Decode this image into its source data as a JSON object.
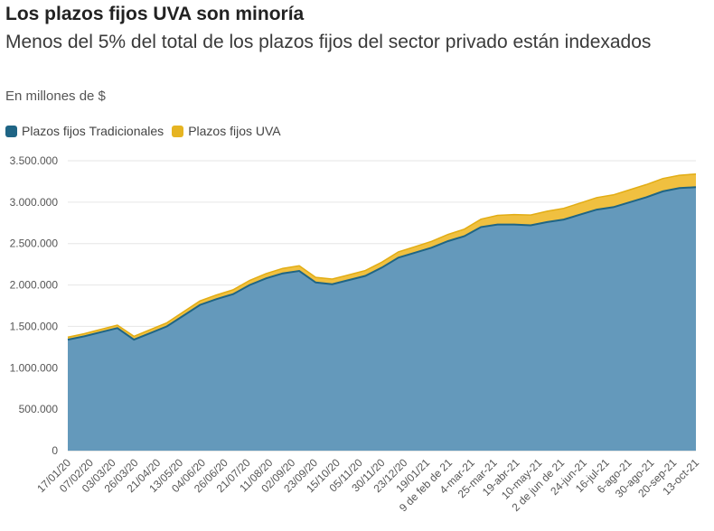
{
  "title": "Los plazos fijos UVA son minoría",
  "subtitle": "Menos del 5% del total de los plazos fijos del sector privado están indexados",
  "units": "En millones de $",
  "legend": [
    {
      "label": "Plazos fijos Tradicionales",
      "color": "#1f6585"
    },
    {
      "label": "Plazos fijos UVA",
      "color": "#e6b422"
    }
  ],
  "colors": {
    "traditional_fill": "#6499bb",
    "traditional_line": "#1f6585",
    "uva_fill": "#f0c040",
    "uva_line": "#e2ad14",
    "grid": "#e6e6e6",
    "axis": "#cccccc"
  },
  "chart_data": {
    "type": "area",
    "stacked": true,
    "title": "Los plazos fijos UVA son minoría",
    "subtitle": "Menos del 5% del total de los plazos fijos del sector privado están indexados",
    "ylabel": "En millones de $",
    "ylim": [
      0,
      3500000
    ],
    "y_ticks": [
      0,
      500000,
      1000000,
      1500000,
      2000000,
      2500000,
      3000000,
      3500000
    ],
    "y_tick_labels": [
      "0",
      "500.000",
      "1.000.000",
      "1.500.000",
      "2.000.000",
      "2.500.000",
      "3.000.000",
      "3.500.000"
    ],
    "x_tick_labels": [
      "17/01/20",
      "07/02/20",
      "03/03/20",
      "26/03/20",
      "21/04/20",
      "13/05/20",
      "04/06/20",
      "26/06/20",
      "21/07/20",
      "11/08/20",
      "02/09/20",
      "23/09/20",
      "15/10/20",
      "05/11/20",
      "30/11/20",
      "23/12/20",
      "19/01/21",
      "9 de feb de 21",
      "4-mar-21",
      "25-mar-21",
      "19-abr-21",
      "10-may-21",
      "2 de jun de 21",
      "24-jun-21",
      "16-jul-21",
      "6-ago-21",
      "30-ago-21",
      "20-sep-21",
      "13-oct-21"
    ],
    "series": [
      {
        "name": "Plazos fijos Tradicionales",
        "values": [
          1340000,
          1380000,
          1430000,
          1480000,
          1340000,
          1420000,
          1500000,
          1630000,
          1760000,
          1830000,
          1890000,
          2000000,
          2080000,
          2140000,
          2170000,
          2030000,
          2010000,
          2060000,
          2110000,
          2210000,
          2330000,
          2390000,
          2450000,
          2530000,
          2590000,
          2700000,
          2730000,
          2730000,
          2720000,
          2760000,
          2790000,
          2850000,
          2910000,
          2940000,
          3000000,
          3060000,
          3130000,
          3170000,
          3180000
        ]
      },
      {
        "name": "Plazos fijos UVA",
        "values": [
          30000,
          32000,
          34000,
          36000,
          40000,
          42000,
          44000,
          46000,
          48000,
          50000,
          52000,
          55000,
          58000,
          60000,
          62000,
          62000,
          62000,
          62000,
          64000,
          66000,
          70000,
          72000,
          76000,
          80000,
          85000,
          95000,
          110000,
          120000,
          125000,
          130000,
          135000,
          140000,
          145000,
          148000,
          150000,
          152000,
          155000,
          155000,
          160000
        ]
      }
    ]
  }
}
